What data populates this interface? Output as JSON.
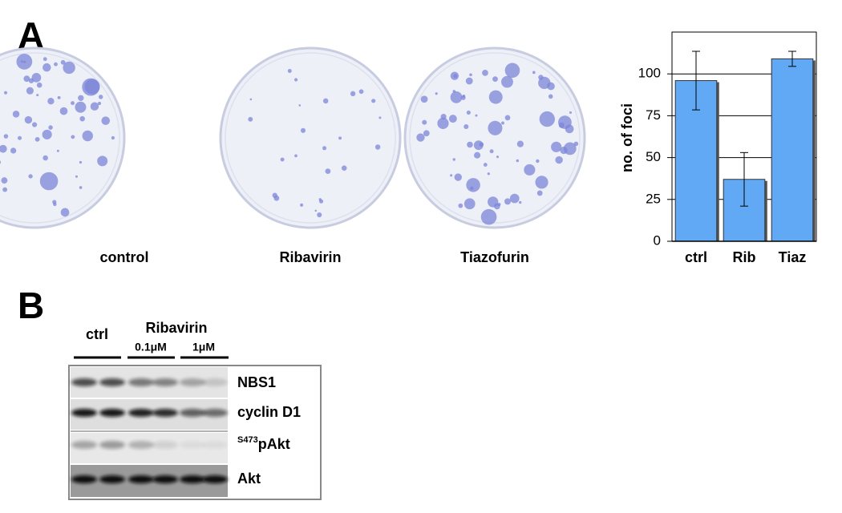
{
  "panel_a": {
    "label": "A",
    "dishes": [
      "control",
      "Ribavirin",
      "Tiazofurin"
    ]
  },
  "chart_data": {
    "type": "bar",
    "categories": [
      "ctrl",
      "Rib",
      "Tiaz"
    ],
    "values": [
      96,
      37,
      109
    ],
    "errors": [
      17.5,
      16,
      4.5
    ],
    "color": "#62a9f5",
    "ylabel": "no. of foci",
    "ylim": [
      0,
      125
    ],
    "yticks": [
      0,
      25,
      50,
      75,
      100
    ],
    "grid": true
  },
  "panel_b": {
    "label": "B",
    "header": [
      "ctrl",
      "Ribavirin",
      "0.1μM",
      "1μM"
    ],
    "rows": [
      "NBS1",
      "cyclin D1",
      {
        "superscript": "S473",
        "text": "pAkt"
      },
      "Akt"
    ]
  }
}
